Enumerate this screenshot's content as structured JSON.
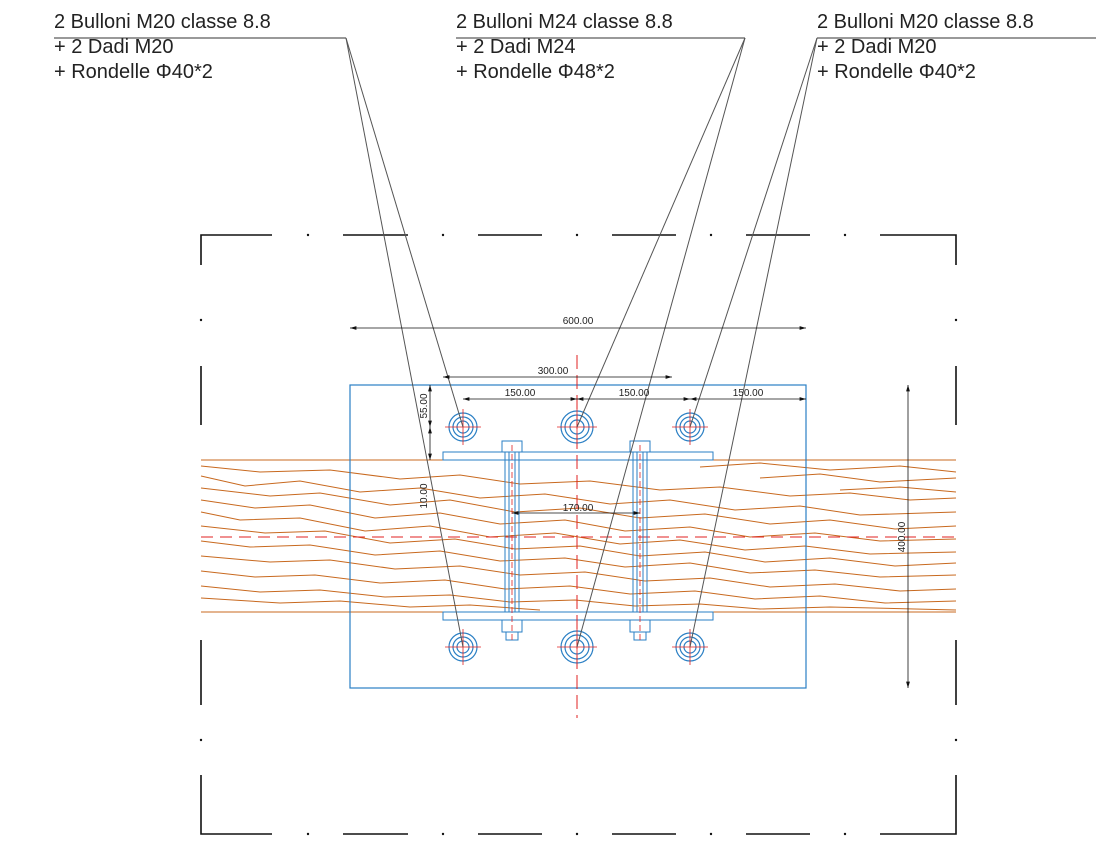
{
  "callouts": [
    {
      "line1": "2 Bulloni M20 classe 8.8",
      "line2": "+ 2 Dadi M20",
      "line3": "+ Rondelle Φ40*2"
    },
    {
      "line1": "2 Bulloni M24 classe 8.8",
      "line2": "+ 2 Dadi M24",
      "line3": "+ Rondelle Φ48*2"
    },
    {
      "line1": "2 Bulloni M20 classe 8.8",
      "line2": "+ 2 Dadi M20",
      "line3": "+ Rondelle Φ40*2"
    }
  ],
  "dimensions": {
    "overall_width": "600.00",
    "bolt_span": "300.00",
    "spacing_left": "150.00",
    "spacing_mid": "150.00",
    "spacing_right": "150.00",
    "edge_top": "55.00",
    "gap": "10.00",
    "rod_spacing": "170.00",
    "plate_height": "400.00"
  },
  "colors": {
    "wood": "#c8691f",
    "plate": "#2a7fc4",
    "centerline": "#e02020",
    "frame": "#111111",
    "leader": "#555555"
  }
}
